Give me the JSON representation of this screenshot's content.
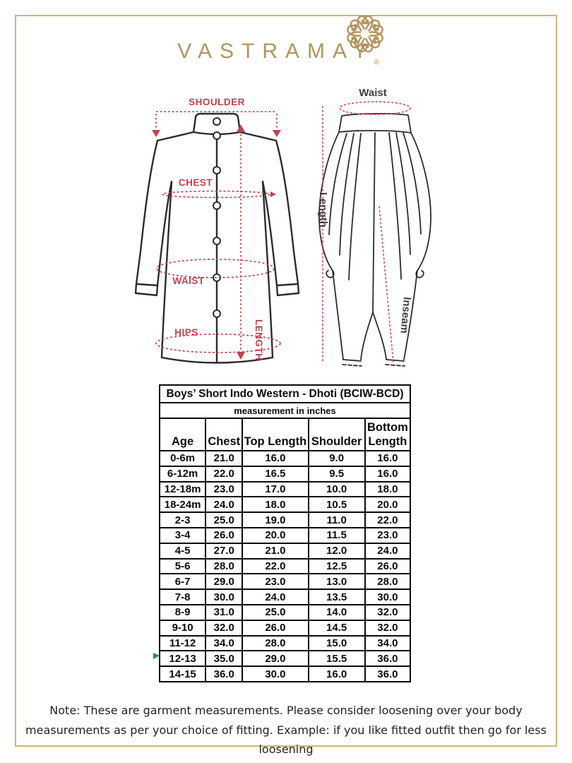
{
  "brand": {
    "name": "VASTRAMAY",
    "registered": "®"
  },
  "colors": {
    "gold": "#b2945c",
    "border_gold": "#cbb577",
    "label_red": "#c5414e",
    "dhoti_red": "#d9485a",
    "garment_ink": "#2c2c2c",
    "table_ink": "#0a0a0a",
    "note_ink": "#222222",
    "marker_green": "#2f8f46"
  },
  "diagram": {
    "kurta": {
      "shoulder": "SHOULDER",
      "chest": "CHEST",
      "waist": "WAIST",
      "hips": "HIPS",
      "length": "LENGTH"
    },
    "dhoti": {
      "waist": "Waist",
      "length": "Length",
      "inseam": "Inseam"
    }
  },
  "size_table": {
    "title": "Boys’ Short Indo Western - Dhoti (BCIW-BCD)",
    "subtitle": "measurement in inches",
    "columns": [
      "Age",
      "Chest",
      "Top Length",
      "Shoulder",
      "Bottom Length"
    ],
    "rows": [
      [
        "0-6m",
        "21.0",
        "16.0",
        "9.0",
        "16.0"
      ],
      [
        "6-12m",
        "22.0",
        "16.5",
        "9.5",
        "16.0"
      ],
      [
        "12-18m",
        "23.0",
        "17.0",
        "10.0",
        "18.0"
      ],
      [
        "18-24m",
        "24.0",
        "18.0",
        "10.5",
        "20.0"
      ],
      [
        "2-3",
        "25.0",
        "19.0",
        "11.0",
        "22.0"
      ],
      [
        "3-4",
        "26.0",
        "20.0",
        "11.5",
        "23.0"
      ],
      [
        "4-5",
        "27.0",
        "21.0",
        "12.0",
        "24.0"
      ],
      [
        "5-6",
        "28.0",
        "22.0",
        "12.5",
        "26.0"
      ],
      [
        "6-7",
        "29.0",
        "23.0",
        "13.0",
        "28.0"
      ],
      [
        "7-8",
        "30.0",
        "24.0",
        "13.5",
        "30.0"
      ],
      [
        "8-9",
        "31.0",
        "25.0",
        "14.0",
        "32.0"
      ],
      [
        "9-10",
        "32.0",
        "26.0",
        "14.5",
        "32.0"
      ],
      [
        "11-12",
        "34.0",
        "28.0",
        "15.0",
        "34.0"
      ],
      [
        "12-13",
        "35.0",
        "29.0",
        "15.5",
        "36.0"
      ],
      [
        "14-15",
        "36.0",
        "30.0",
        "16.0",
        "36.0"
      ]
    ]
  },
  "note": {
    "text": "Note: These are garment measurements. Please consider loosening over your body measurements as per your choice of fitting. Example: if you like fitted outfit then go for less loosening"
  }
}
